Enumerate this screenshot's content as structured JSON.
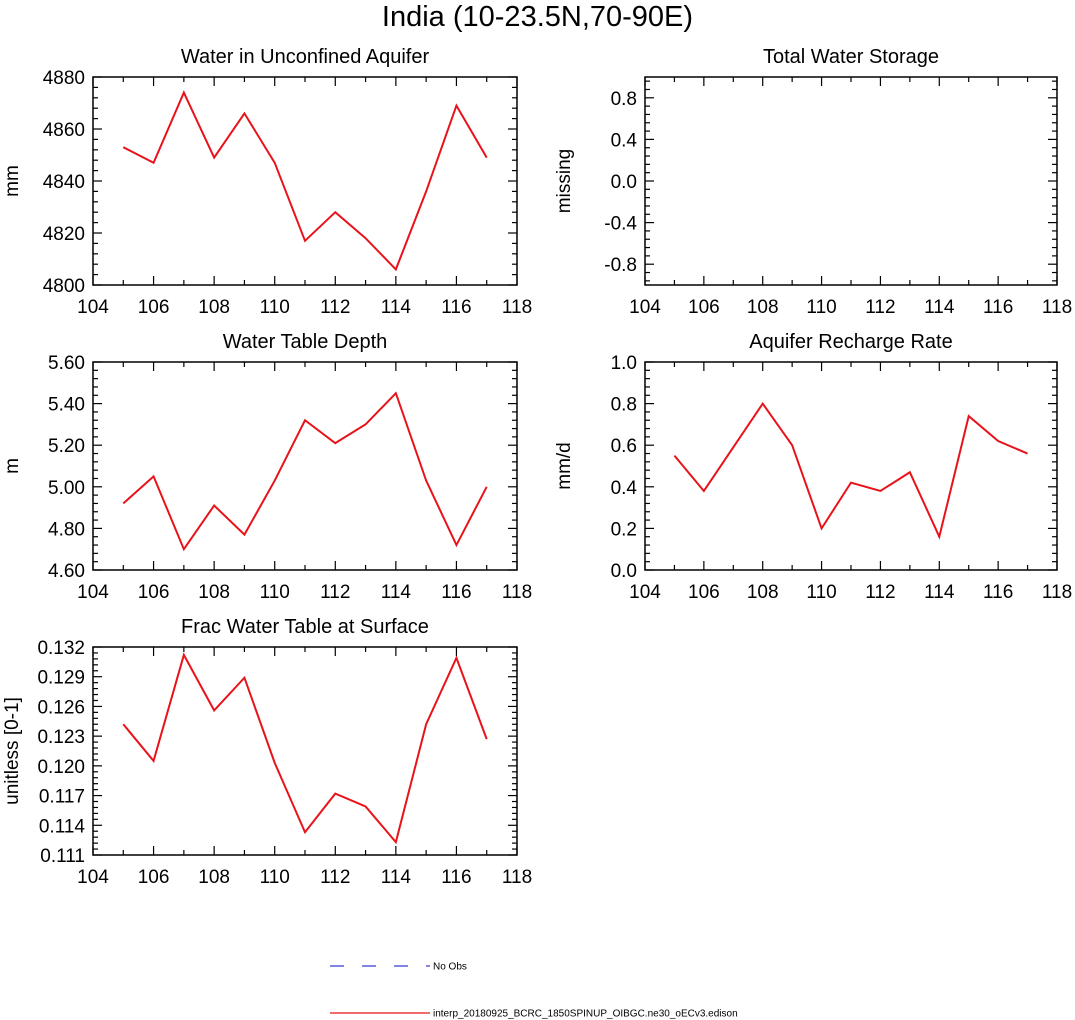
{
  "title": "India (10-23.5N,70-90E)",
  "chart_data": [
    {
      "type": "line",
      "title": "Water in Unconfined Aquifer",
      "ylabel": "mm",
      "xlim": [
        104,
        118
      ],
      "ylim": [
        4800,
        4880
      ],
      "xticks": [
        "104",
        "106",
        "108",
        "110",
        "112",
        "114",
        "116",
        "118"
      ],
      "yticks": [
        "4800",
        "4820",
        "4840",
        "4860",
        "4880"
      ],
      "x": [
        105,
        106,
        107,
        108,
        109,
        110,
        111,
        112,
        113,
        114,
        115,
        116,
        117
      ],
      "series": [
        {
          "values": [
            4853,
            4847,
            4874,
            4849,
            4866,
            4847,
            4817,
            4828,
            4818,
            4806,
            4836,
            4869,
            4849
          ],
          "color": "#e8131a"
        }
      ]
    },
    {
      "type": "line",
      "title": "Total Water Storage",
      "ylabel": "missing",
      "xlim": [
        104,
        118
      ],
      "ylim": [
        -1,
        1
      ],
      "xticks": [
        "104",
        "106",
        "108",
        "110",
        "112",
        "114",
        "116",
        "118"
      ],
      "yticks": [
        "-0.8",
        "-0.4",
        "0.0",
        "0.4",
        "0.8"
      ],
      "ytick_values": [
        -0.8,
        -0.4,
        0,
        0.4,
        0.8
      ],
      "x": [],
      "series": []
    },
    {
      "type": "line",
      "title": "Water Table Depth",
      "ylabel": "m",
      "xlim": [
        104,
        118
      ],
      "ylim": [
        4.6,
        5.6
      ],
      "xticks": [
        "104",
        "106",
        "108",
        "110",
        "112",
        "114",
        "116",
        "118"
      ],
      "yticks": [
        "4.60",
        "4.80",
        "5.00",
        "5.20",
        "5.40",
        "5.60"
      ],
      "x": [
        105,
        106,
        107,
        108,
        109,
        110,
        111,
        112,
        113,
        114,
        115,
        116,
        117
      ],
      "series": [
        {
          "values": [
            4.92,
            5.05,
            4.7,
            4.91,
            4.77,
            5.03,
            5.32,
            5.21,
            5.3,
            5.45,
            5.03,
            4.72,
            5.0
          ],
          "color": "#e8131a"
        }
      ]
    },
    {
      "type": "line",
      "title": "Aquifer Recharge Rate",
      "ylabel": "mm/d",
      "xlim": [
        104,
        118
      ],
      "ylim": [
        0,
        1
      ],
      "xticks": [
        "104",
        "106",
        "108",
        "110",
        "112",
        "114",
        "116",
        "118"
      ],
      "yticks": [
        "0.0",
        "0.2",
        "0.4",
        "0.6",
        "0.8",
        "1.0"
      ],
      "x": [
        105,
        106,
        107,
        108,
        109,
        110,
        111,
        112,
        113,
        114,
        115,
        116,
        117
      ],
      "series": [
        {
          "values": [
            0.55,
            0.38,
            0.59,
            0.8,
            0.6,
            0.2,
            0.42,
            0.38,
            0.47,
            0.16,
            0.74,
            0.62,
            0.56
          ],
          "color": "#e8131a"
        }
      ]
    },
    {
      "type": "line",
      "title": "Frac Water Table at Surface",
      "ylabel": "unitless [0-1]",
      "xlim": [
        104,
        118
      ],
      "ylim": [
        0.111,
        0.132
      ],
      "xticks": [
        "104",
        "106",
        "108",
        "110",
        "112",
        "114",
        "116",
        "118"
      ],
      "yticks": [
        "0.111",
        "0.114",
        "0.117",
        "0.120",
        "0.123",
        "0.126",
        "0.129",
        "0.132"
      ],
      "x": [
        105,
        106,
        107,
        108,
        109,
        110,
        111,
        112,
        113,
        114,
        115,
        116,
        117
      ],
      "series": [
        {
          "values": [
            0.1242,
            0.1205,
            0.1312,
            0.1256,
            0.1289,
            0.1203,
            0.1133,
            0.1172,
            0.1159,
            0.1123,
            0.1242,
            0.1309,
            0.1227
          ],
          "color": "#e8131a"
        }
      ]
    }
  ],
  "legend": {
    "items": [
      {
        "label": "No Obs",
        "style": "dashed",
        "color": "#3b3bd6"
      },
      {
        "label": "interp_20180925_BCRC_1850SPINUP_OIBGC.ne30_oECv3.edison",
        "style": "solid",
        "color": "#e8131a"
      }
    ]
  }
}
